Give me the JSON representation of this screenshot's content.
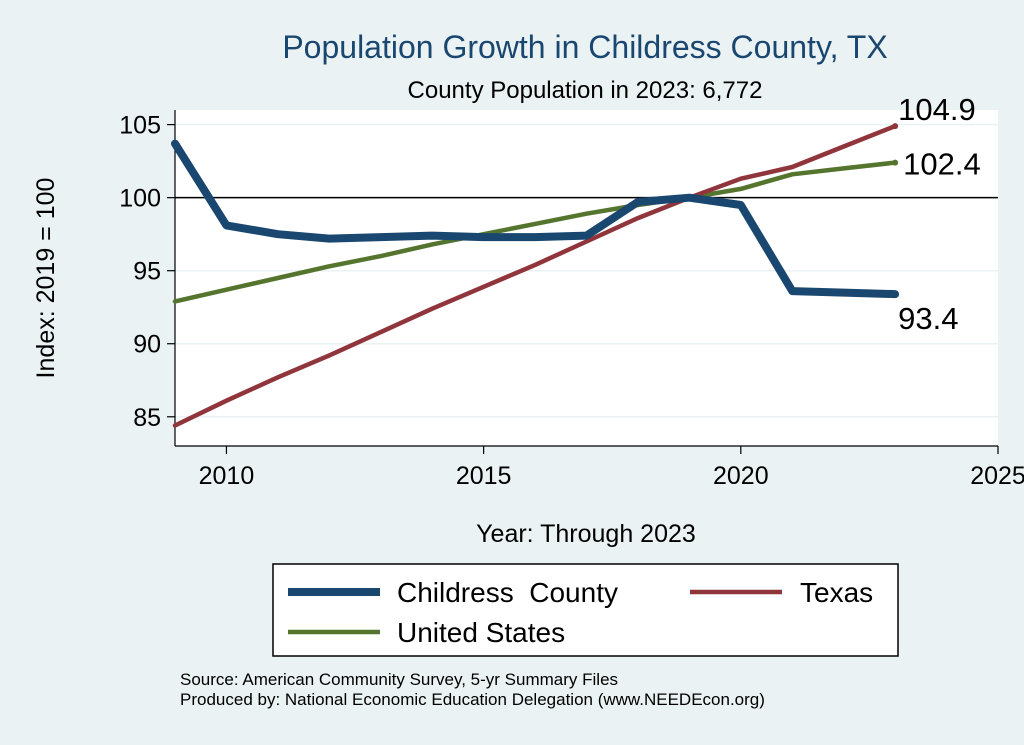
{
  "chart_data": {
    "type": "line",
    "title": "Population Growth in Childress County, TX",
    "subtitle": "County Population in 2023: 6,772",
    "xlabel": "Year: Through 2023",
    "ylabel": "Index: 2019 = 100",
    "xlim": [
      2009,
      2025
    ],
    "ylim": [
      83,
      106
    ],
    "xticks": [
      2010,
      2015,
      2020,
      2025
    ],
    "yticks": [
      85,
      90,
      95,
      100,
      105
    ],
    "reference_line": 100,
    "grid": true,
    "legend_position": "bottom",
    "x": [
      2009,
      2010,
      2011,
      2012,
      2013,
      2014,
      2015,
      2016,
      2017,
      2018,
      2019,
      2020,
      2021,
      2022,
      2023
    ],
    "series": [
      {
        "name": "Childress  County",
        "color": "#1a476f",
        "values": [
          103.7,
          98.1,
          97.5,
          97.2,
          97.3,
          97.4,
          97.3,
          97.3,
          97.4,
          99.7,
          100.0,
          99.5,
          93.6,
          93.5,
          93.4
        ],
        "end_label": "93.4"
      },
      {
        "name": "Texas",
        "color": "#90353b",
        "values": [
          84.4,
          86.1,
          87.7,
          89.2,
          90.8,
          92.4,
          93.9,
          95.4,
          97.0,
          98.6,
          100.0,
          101.3,
          102.1,
          103.5,
          104.9
        ],
        "end_label": "104.9"
      },
      {
        "name": "United States",
        "color": "#55752f",
        "values": [
          92.9,
          93.7,
          94.5,
          95.3,
          96.0,
          96.8,
          97.5,
          98.2,
          98.9,
          99.5,
          100.0,
          100.6,
          101.6,
          102.0,
          102.4
        ],
        "end_label": "102.4"
      }
    ]
  },
  "footer": {
    "source": "Source: American Community Survey, 5-yr Summary Files",
    "producer": "Produced by: National Economic Education Delegation (www.NEEDEcon.org)"
  }
}
